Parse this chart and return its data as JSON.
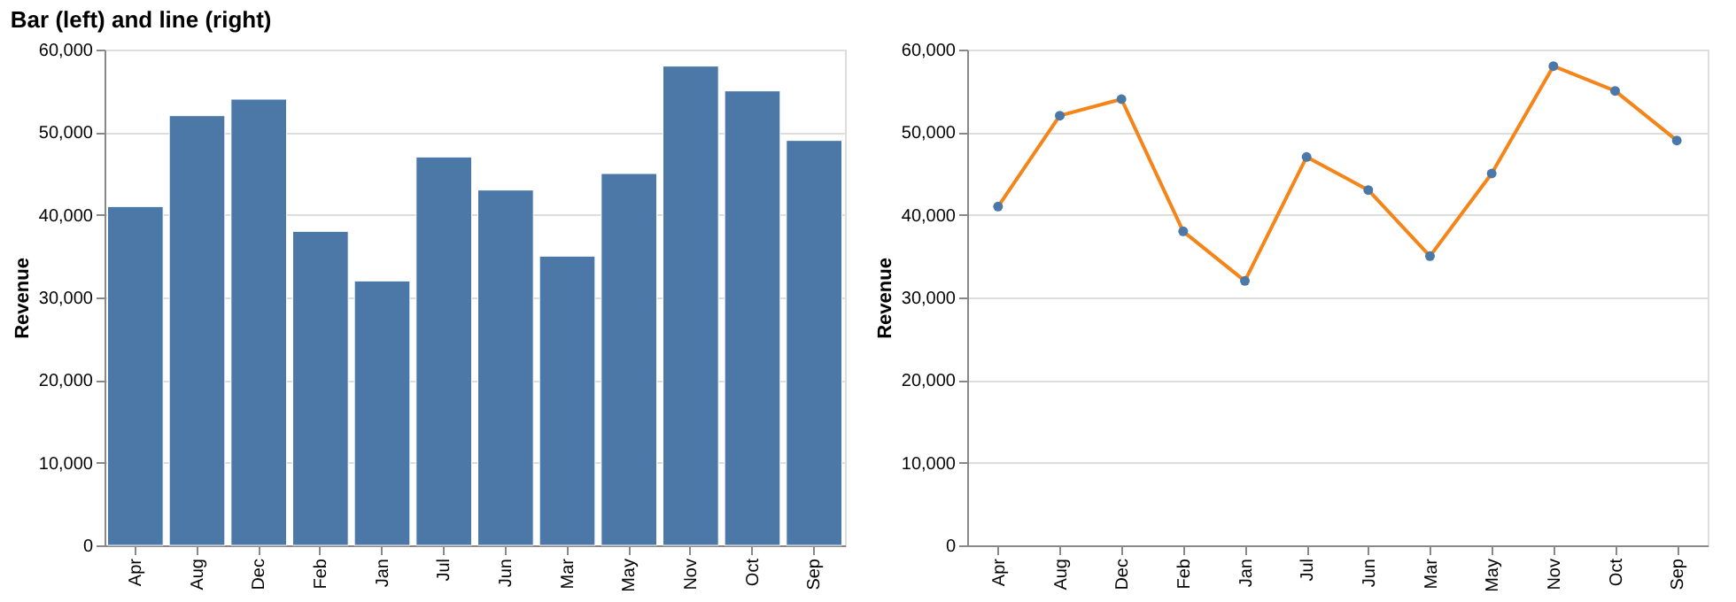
{
  "chart_data": [
    {
      "type": "bar",
      "title": "Bar (left) and line (right)",
      "ylabel": "Revenue",
      "categories": [
        "Apr",
        "Aug",
        "Dec",
        "Feb",
        "Jan",
        "Jul",
        "Jun",
        "Mar",
        "May",
        "Nov",
        "Oct",
        "Sep"
      ],
      "series": [
        {
          "color": "#4c78a8",
          "values": [
            41000,
            52000,
            54000,
            38000,
            32000,
            47000,
            43000,
            35000,
            45000,
            58000,
            55000,
            49000
          ]
        }
      ],
      "ylim": [
        0,
        60000
      ],
      "yticks": [
        {
          "value": 0,
          "label": "0"
        },
        {
          "value": 10000,
          "label": "10,000"
        },
        {
          "value": 20000,
          "label": "20,000"
        },
        {
          "value": 30000,
          "label": "30,000"
        },
        {
          "value": 40000,
          "label": "40,000"
        },
        {
          "value": 50000,
          "label": "50,000"
        },
        {
          "value": 60000,
          "label": "60,000"
        }
      ],
      "grid": "y"
    },
    {
      "type": "line",
      "ylabel": "Revenue",
      "marker": "circle",
      "categories": [
        "Apr",
        "Aug",
        "Dec",
        "Feb",
        "Jan",
        "Jul",
        "Jun",
        "Mar",
        "May",
        "Nov",
        "Oct",
        "Sep"
      ],
      "series": [
        {
          "color": "#f58518",
          "values": [
            41000,
            52000,
            54000,
            38000,
            32000,
            47000,
            43000,
            35000,
            45000,
            58000,
            55000,
            49000
          ]
        }
      ],
      "ylim": [
        0,
        60000
      ],
      "yticks": [
        {
          "value": 0,
          "label": "0"
        },
        {
          "value": 10000,
          "label": "10,000"
        },
        {
          "value": 20000,
          "label": "20,000"
        },
        {
          "value": 30000,
          "label": "30,000"
        },
        {
          "value": 40000,
          "label": "40,000"
        },
        {
          "value": 50000,
          "label": "50,000"
        },
        {
          "value": 60000,
          "label": "60,000"
        }
      ],
      "grid": "y",
      "line_style": "solid"
    }
  ]
}
